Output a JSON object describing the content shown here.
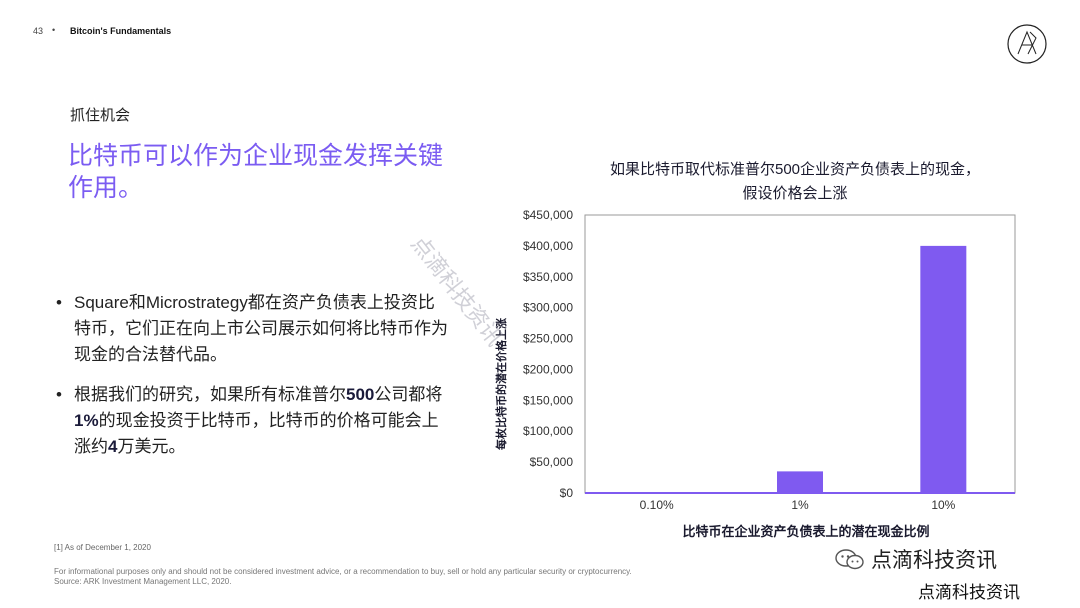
{
  "header": {
    "page_number": "43",
    "dot": "•",
    "deck_title": "Bitcoin's Fundamentals"
  },
  "slide": {
    "section_label": "抓住机会",
    "headline": "比特币可以作为企业现金发挥关键作用。",
    "bullets": [
      {
        "mark": "•",
        "text": "Square和Microstrategy都在资产负债表上投资比特币，它们正在向上市公司展示如何将比特币作为现金的合法替代品。"
      },
      {
        "mark": "•",
        "parts": [
          "根据我们的研究，如果所有标准普尔",
          "500",
          "公司都将",
          "1%",
          "的现金投资于比特币，比特币的价格可能会上涨约",
          "4",
          "万美元。"
        ]
      }
    ],
    "footnote": "[1] As of December 1, 2020",
    "disclaimer_1": "For informational purposes only and should not be considered investment advice, or a recommendation to buy, sell or hold any particular security or cryptocurrency.",
    "disclaimer_2": "Source: ARK Investment Management LLC, 2020."
  },
  "watermark": "点滴科技资讯",
  "brand": {
    "line1": "点滴科技资讯",
    "line2": "点滴科技资讯"
  },
  "colors": {
    "accent": "#7b5cf2",
    "bar": "#7f5af0"
  },
  "chart_data": {
    "type": "bar",
    "title": "如果比特币取代标准普尔500企业资产负债表上的现金，假设价格会上涨",
    "title_lines": [
      "如果比特币取代标准普尔500企业资产负债表上的现金，",
      "假设价格会上涨"
    ],
    "categories": [
      "0.10%",
      "1%",
      "10%"
    ],
    "values": [
      500,
      35000,
      400000
    ],
    "xlabel": "比特币在企业资产负债表上的潜在现金比例",
    "ylabel": "每枚比特币的潜在价格上涨",
    "ylim": [
      0,
      450000
    ],
    "yticks": [
      "$0",
      "$50,000",
      "$100,000",
      "$150,000",
      "$200,000",
      "$250,000",
      "$300,000",
      "$350,000",
      "$400,000",
      "$450,000"
    ],
    "grid": false
  }
}
